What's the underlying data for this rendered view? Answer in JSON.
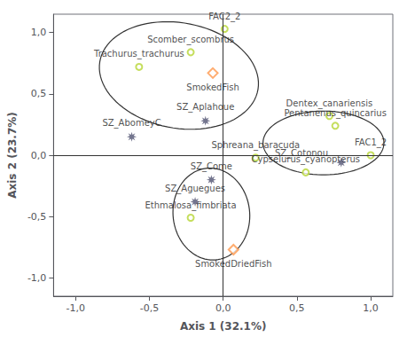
{
  "chart_data": {
    "type": "scatter",
    "xlabel": "Axis 1 (32.1%)",
    "ylabel": "Axis 2 (23.7%)",
    "xlim": [
      -1.15,
      1.15
    ],
    "ylim": [
      -1.15,
      1.15
    ],
    "xticks": [
      {
        "value": -1.0,
        "label": "-1,0"
      },
      {
        "value": -0.5,
        "label": "-0,5"
      },
      {
        "value": 0.0,
        "label": "0,0"
      },
      {
        "value": 0.5,
        "label": "0,5"
      },
      {
        "value": 1.0,
        "label": "1,0"
      }
    ],
    "yticks": [
      {
        "value": -1.0,
        "label": "-1,0"
      },
      {
        "value": -0.5,
        "label": "-0,5"
      },
      {
        "value": 0.0,
        "label": "0,0"
      },
      {
        "value": 0.5,
        "label": "0,5"
      },
      {
        "value": 1.0,
        "label": "1,0"
      }
    ],
    "grid": false,
    "hlines": [
      0
    ],
    "vlines": [
      0
    ],
    "series": [
      {
        "marker": "open_circle",
        "points": [
          {
            "x": -0.57,
            "y": 0.72,
            "label": "Trachurus_trachurus"
          },
          {
            "x": -0.22,
            "y": 0.84,
            "label": "Scomber_scombrus"
          },
          {
            "x": 0.01,
            "y": 1.03,
            "label": "FAC2_2"
          },
          {
            "x": 0.72,
            "y": 0.32,
            "label": "Dentex_canariensis"
          },
          {
            "x": 0.76,
            "y": 0.24,
            "label": "Pentanenus_quincarius"
          },
          {
            "x": 1.0,
            "y": 0.0,
            "label": "FAC1_2"
          },
          {
            "x": 0.22,
            "y": -0.02,
            "label": "Sphreana_baracuda"
          },
          {
            "x": 0.56,
            "y": -0.14,
            "label": "Cypselurus_cyanopterus"
          },
          {
            "x": -0.22,
            "y": -0.51,
            "label": "Ethmalosa_fimbriata"
          }
        ]
      },
      {
        "marker": "star",
        "points": [
          {
            "x": -0.62,
            "y": 0.15,
            "label": "SZ_AbomeyC"
          },
          {
            "x": -0.12,
            "y": 0.28,
            "label": "SZ_Aplahoue"
          },
          {
            "x": 0.8,
            "y": -0.06,
            "label": null
          },
          {
            "x": -0.08,
            "y": -0.2,
            "label": "SZ_Come"
          },
          {
            "x": -0.19,
            "y": -0.38,
            "label": "SZ_Aguegues"
          }
        ]
      },
      {
        "marker": "open_diamond",
        "points": [
          {
            "x": -0.07,
            "y": 0.67,
            "label": "SmokedFish"
          },
          {
            "x": 0.07,
            "y": -0.77,
            "label": "SmokedDriedFish"
          }
        ]
      }
    ],
    "annotations": [
      {
        "text": "SZ_Cotonou",
        "x": 0.35,
        "y": 0.02
      }
    ],
    "ellipses": [
      {
        "cx": -0.3,
        "cy": 0.65,
        "width": 1.1,
        "height": 0.85,
        "angle": -18
      },
      {
        "cx": 0.68,
        "cy": 0.1,
        "width": 0.82,
        "height": 0.52,
        "angle": 0
      },
      {
        "cx": -0.08,
        "cy": -0.48,
        "width": 0.52,
        "height": 0.75,
        "angle": 3
      }
    ]
  }
}
